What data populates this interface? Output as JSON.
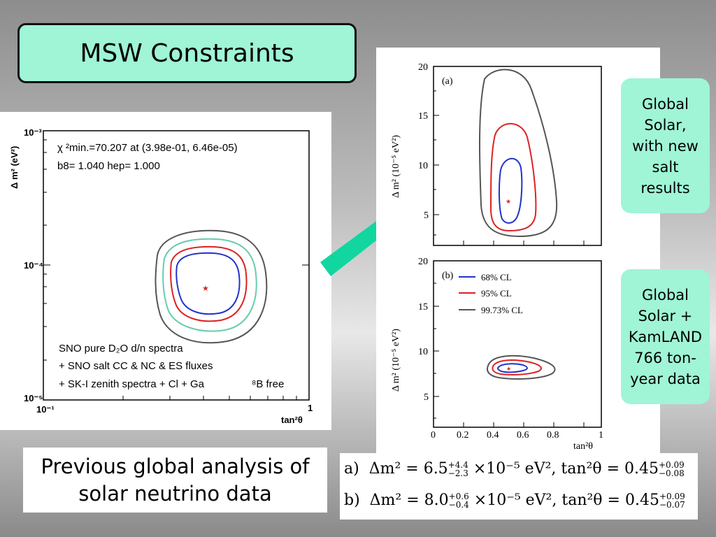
{
  "slide_title": "MSW Constraints",
  "colors": {
    "title_bg": "#9ff5d6",
    "arrow": "#11d6a0",
    "blue": "#2233cc",
    "red": "#dd2222",
    "teal": "#66ccb0",
    "gray": "#555555"
  },
  "left_plot": {
    "y_axis_label": "Δ m² (eV²)",
    "x_axis_label": "tan²θ",
    "y_ticks": [
      "10⁻³",
      "10⁻⁴",
      "10⁻⁵"
    ],
    "x_ticks": [
      "10⁻¹",
      "1"
    ],
    "chi_line": "χ ²min.=70.207 at (3.98e-01, 6.46e-05)",
    "b8_line": "b8= 1.040 hep= 1.000",
    "legend_1": "SNO pure D₂O d/n spectra",
    "legend_2": "+ SNO salt CC & NC & ES fluxes",
    "legend_3": "+ SK-I zenith spectra + Cl + Ga",
    "legend_4": "⁸B free"
  },
  "right_top_plot": {
    "panel_label": "(a)",
    "y_axis_label": "Δ m² (10⁻⁵ eV²)",
    "y_ticks": [
      "20",
      "15",
      "10",
      "5"
    ]
  },
  "right_bottom_plot": {
    "panel_label": "(b)",
    "y_axis_label": "Δ m² (10⁻⁵ eV²)",
    "y_ticks": [
      "20",
      "15",
      "10",
      "5"
    ],
    "x_ticks": [
      "0",
      "0.2",
      "0.4",
      "0.6",
      "0.8",
      "1"
    ],
    "x_axis_label": "tan²θ",
    "legend": [
      "68% CL",
      "95% CL",
      "99.73% CL"
    ]
  },
  "note_top": "Global\nSolar,\nwith new\nsalt\nresults",
  "note_bottom": "Global\nSolar +\nKamLAND\n766 ton-\nyear data",
  "caption": "Previous global analysis of\nsolar neutrino data",
  "formula_a": {
    "label": "a)",
    "lhs": "Δm² = 6.5",
    "up": "+4.4",
    "down": "−2.3",
    "mid": "×10⁻⁵ eV²,   tan²θ = 0.45",
    "up2": "+0.09",
    "down2": "−0.08"
  },
  "formula_b": {
    "label": "b)",
    "lhs": "Δm² = 8.0",
    "up": "+0.6",
    "down": "−0.4",
    "mid": "×10⁻⁵ eV²,   tan²θ = 0.45",
    "up2": "+0.09",
    "down2": "−0.07"
  }
}
